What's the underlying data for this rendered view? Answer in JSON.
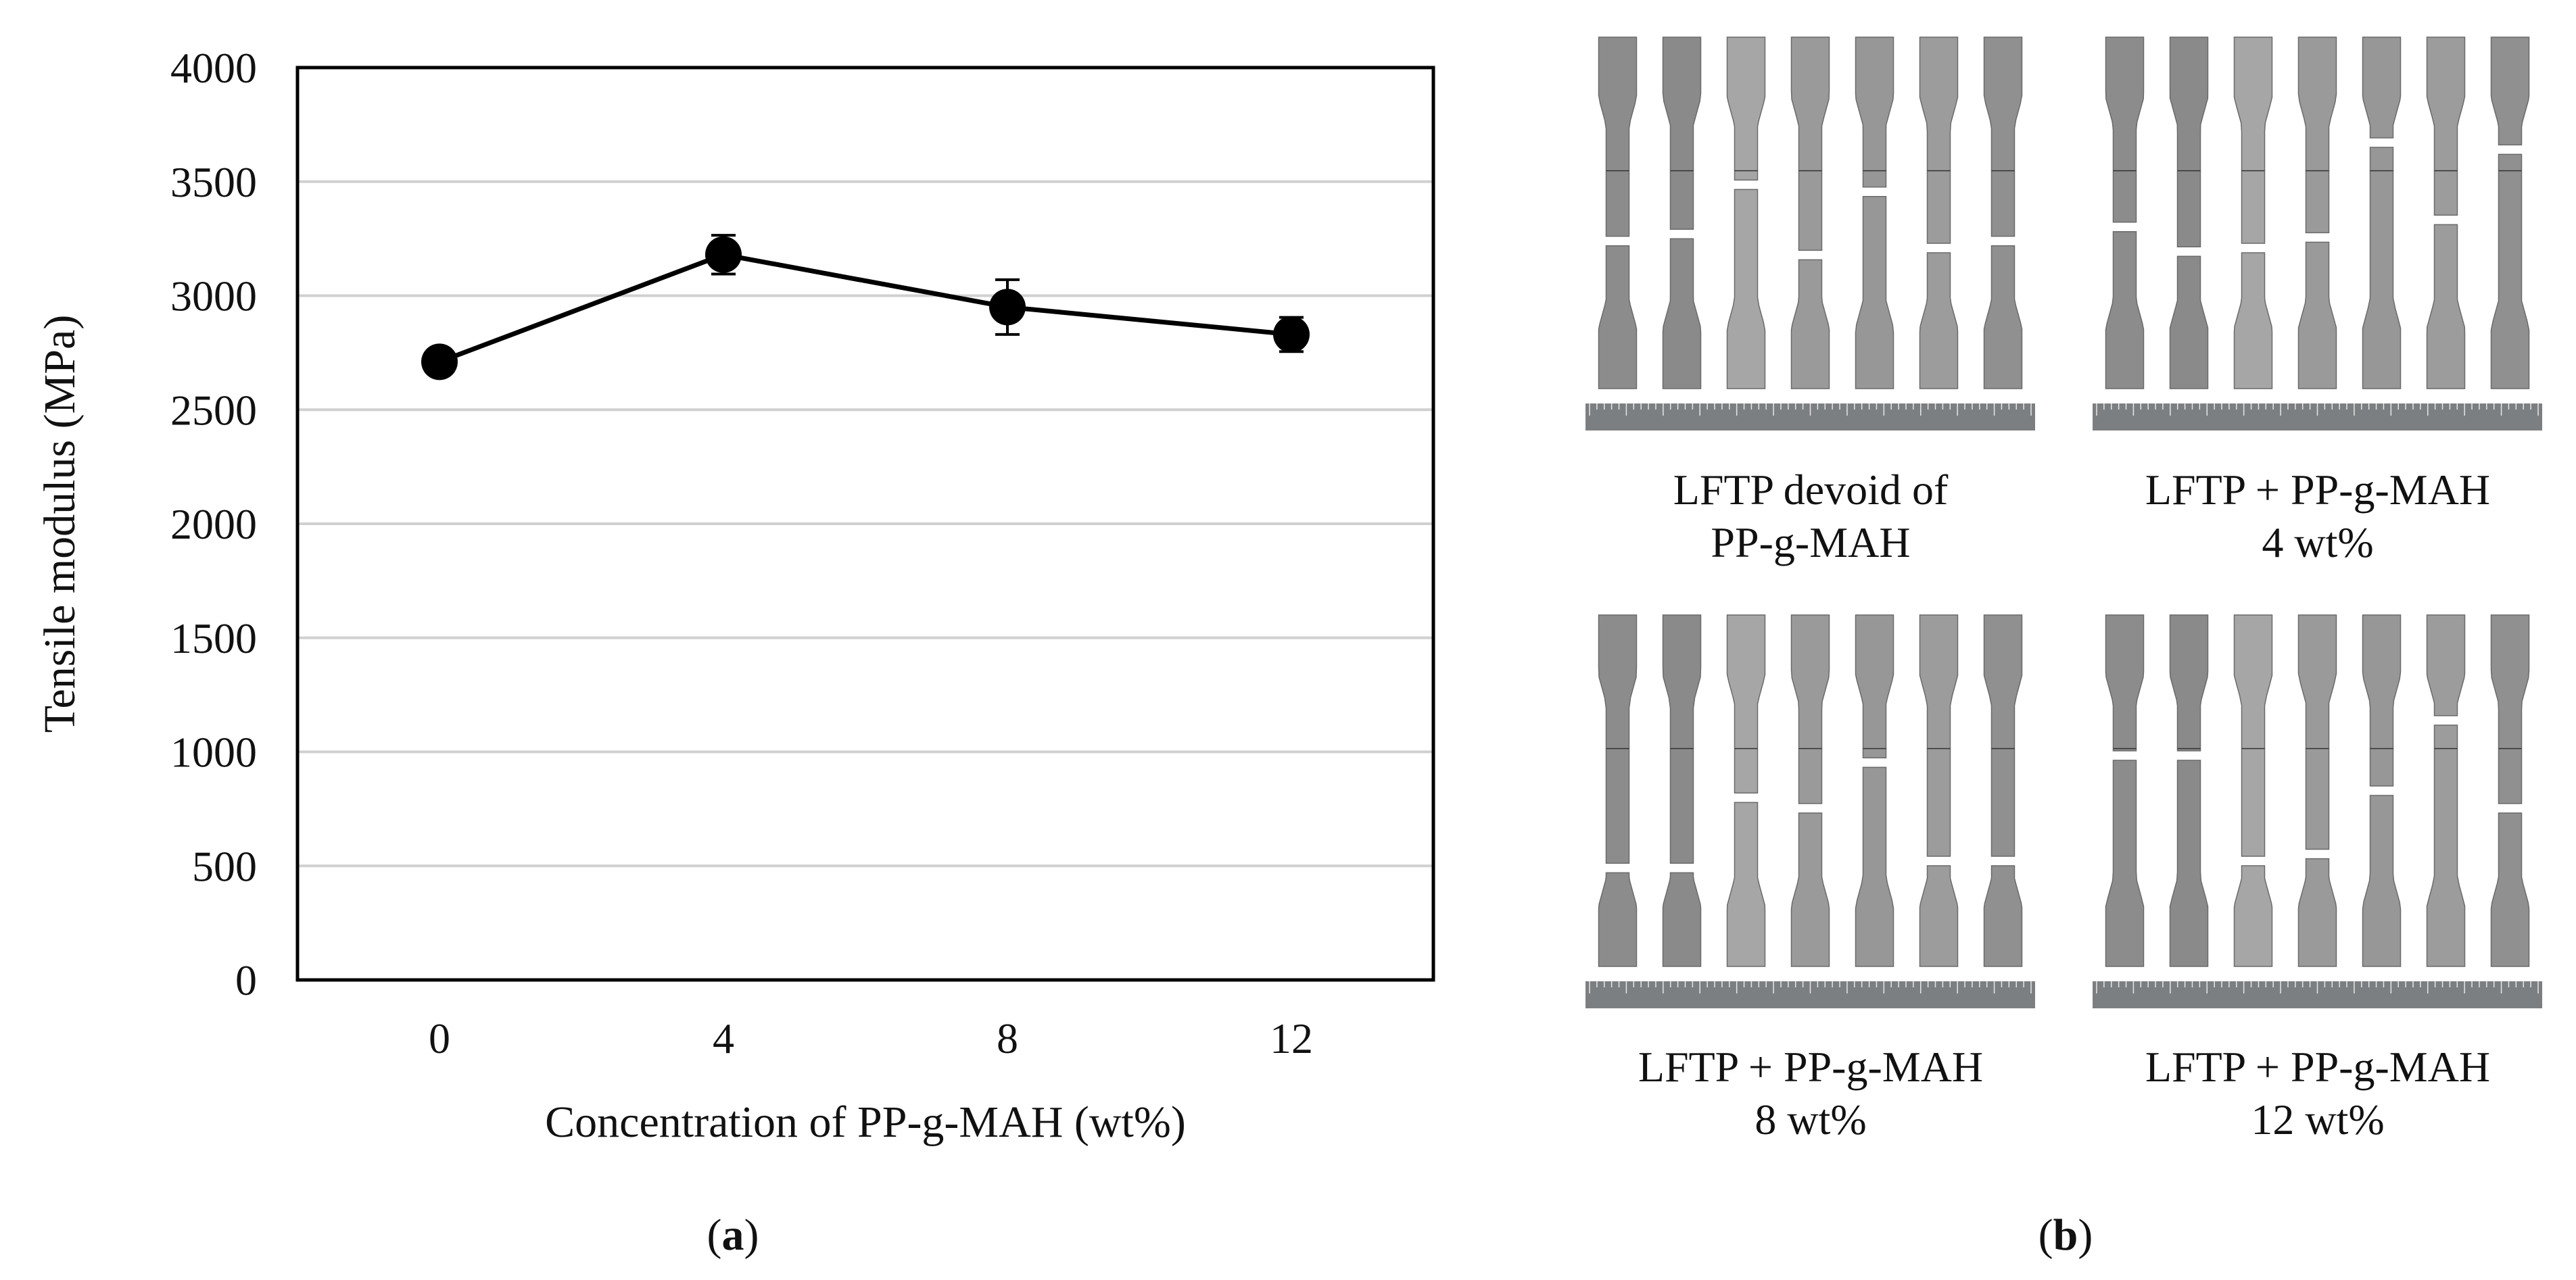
{
  "figure": {
    "panel_a_label": "a",
    "panel_b_label": "b"
  },
  "chart_data": {
    "type": "line",
    "title": "",
    "xlabel": "Concentration of PP-g-MAH (wt%)",
    "ylabel": "Tensile modulus (MPa)",
    "categories": [
      "0",
      "4",
      "8",
      "12"
    ],
    "values": [
      2710,
      3180,
      2950,
      2830
    ],
    "errors": [
      30,
      85,
      120,
      75
    ],
    "ylim": [
      0,
      4000
    ],
    "yticks": [
      "0",
      "500",
      "1000",
      "1500",
      "2000",
      "2500",
      "3000",
      "3500",
      "4000"
    ],
    "grid": true,
    "legend": "none",
    "series_color": "#000000",
    "grid_color": "#d0d0d0"
  },
  "photos": [
    {
      "caption_line1": "LFTP devoid of",
      "caption_line2": "PP-g-MAH",
      "break_positions": [
        0.58,
        0.56,
        0.42,
        0.62,
        0.44,
        0.6,
        0.58
      ]
    },
    {
      "caption_line1": "LFTP + PP-g-MAH",
      "caption_line2": "4 wt%",
      "break_positions": [
        0.54,
        0.61,
        0.6,
        0.57,
        0.3,
        0.52,
        0.32
      ]
    },
    {
      "caption_line1": "LFTP + PP-g-MAH",
      "caption_line2": "8 wt%",
      "break_positions": [
        0.72,
        0.72,
        0.52,
        0.55,
        0.42,
        0.7,
        0.7
      ]
    },
    {
      "caption_line1": "LFTP + PP-g-MAH",
      "caption_line2": "12 wt%",
      "break_positions": [
        0.4,
        0.4,
        0.7,
        0.68,
        0.5,
        0.3,
        0.55
      ]
    }
  ]
}
